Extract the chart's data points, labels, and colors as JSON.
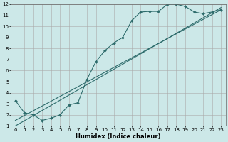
{
  "xlabel": "Humidex (Indice chaleur)",
  "bg_color": "#cce8e8",
  "grid_color": "#aaaaaa",
  "line_color": "#2d6b6b",
  "xlim": [
    -0.5,
    23.5
  ],
  "ylim": [
    1,
    12
  ],
  "xticks": [
    0,
    1,
    2,
    3,
    4,
    5,
    6,
    7,
    8,
    9,
    10,
    11,
    12,
    13,
    14,
    15,
    16,
    17,
    18,
    19,
    20,
    21,
    22,
    23
  ],
  "yticks": [
    1,
    2,
    3,
    4,
    5,
    6,
    7,
    8,
    9,
    10,
    11,
    12
  ],
  "curve1_x": [
    0,
    1,
    2,
    3,
    4,
    5,
    6,
    7,
    8,
    9,
    10,
    11,
    12,
    13,
    14,
    15,
    16,
    17,
    18,
    19,
    20,
    21,
    22,
    23
  ],
  "curve1_y": [
    3.3,
    2.2,
    2.0,
    1.5,
    1.7,
    2.0,
    2.9,
    3.1,
    5.2,
    6.8,
    7.8,
    8.5,
    9.0,
    10.5,
    11.3,
    11.35,
    11.35,
    12.0,
    12.0,
    11.8,
    11.3,
    11.15,
    11.3,
    11.5
  ],
  "curve2_x": [
    0,
    23
  ],
  "curve2_y": [
    1.5,
    11.5
  ],
  "curve3_x": [
    0,
    23
  ],
  "curve3_y": [
    1.0,
    11.7
  ]
}
